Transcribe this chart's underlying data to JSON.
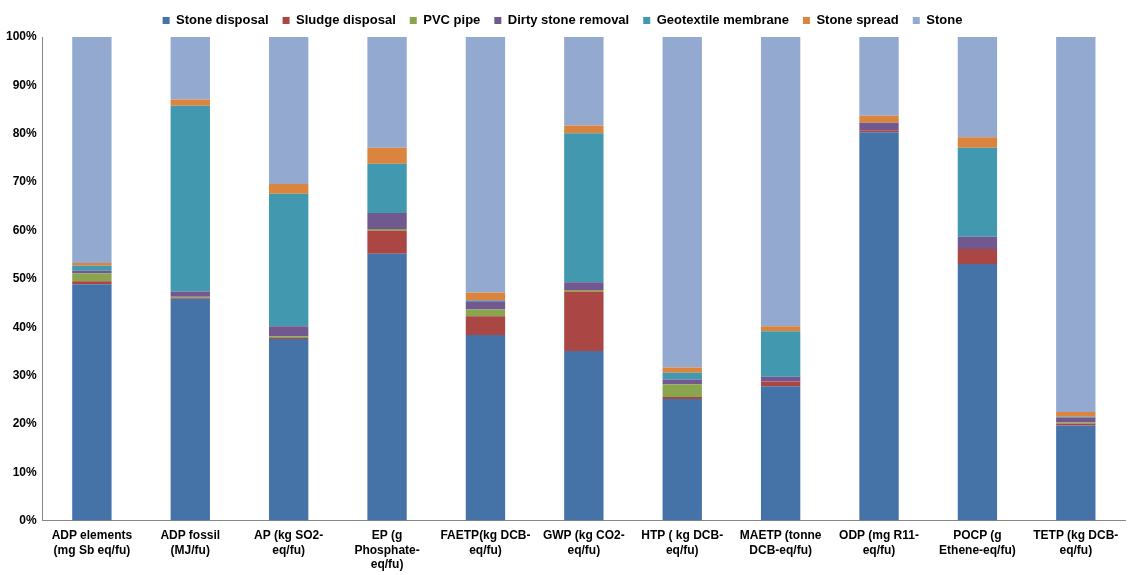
{
  "chart_data": {
    "type": "bar",
    "stacked": true,
    "legend": "top",
    "grid": false,
    "categories": [
      "ADP elements (mg Sb eq/fu)",
      "ADP fossil (MJ/fu)",
      "AP (kg SO2-eq/fu)",
      "EP (g Phosphate-eq/fu)",
      "FAETP(kg DCB-eq/fu)",
      "GWP (kg CO2-eq/fu)",
      "HTP ( kg DCB-eq/fu)",
      "MAETP (tonne DCB-eq/fu)",
      "ODP (mg R11-eq/fu)",
      "POCP (g Ethene-eq/fu)",
      "TETP (kg DCB-eq/fu)"
    ],
    "ylim": [
      0,
      100
    ],
    "yticks": [
      {
        "value": 0,
        "label": "0%"
      },
      {
        "value": 10,
        "label": "10%"
      },
      {
        "value": 20,
        "label": "20%"
      },
      {
        "value": 30,
        "label": "30%"
      },
      {
        "value": 40,
        "label": "40%"
      },
      {
        "value": 50,
        "label": "50%"
      },
      {
        "value": 60,
        "label": "60%"
      },
      {
        "value": 70,
        "label": "70%"
      },
      {
        "value": 80,
        "label": "80%"
      },
      {
        "value": 90,
        "label": "90%"
      },
      {
        "value": 100,
        "label": "100%"
      }
    ],
    "series": [
      {
        "name": "Stone disposal",
        "color": "#4572a7",
        "values": [
          48.9,
          45.9,
          37.6,
          55.2,
          38.4,
          35.1,
          25.2,
          27.8,
          80.3,
          53.1,
          19.7
        ]
      },
      {
        "name": "Sludge disposal",
        "color": "#aa4643",
        "values": [
          0.6,
          0.2,
          0.2,
          4.8,
          3.9,
          12.3,
          0.4,
          1.0,
          0.4,
          3.1,
          0.4
        ]
      },
      {
        "name": "PVC pipe",
        "color": "#89a54e",
        "values": [
          1.6,
          0.2,
          0.3,
          0.3,
          1.4,
          0.3,
          2.6,
          0,
          0,
          0,
          0.2
        ]
      },
      {
        "name": "Dirty stone removal",
        "color": "#71588f",
        "values": [
          0.6,
          1.1,
          2.1,
          3.3,
          1.7,
          1.6,
          1.0,
          1.0,
          1.6,
          2.5,
          1.0
        ]
      },
      {
        "name": "Geotextile membrane",
        "color": "#4198af",
        "values": [
          1.0,
          38.4,
          27.4,
          10.2,
          0.2,
          30.8,
          1.4,
          9.4,
          0,
          18.4,
          0.2
        ]
      },
      {
        "name": "Stone spread",
        "color": "#db843d",
        "values": [
          0.6,
          1.3,
          2.0,
          3.3,
          1.6,
          1.6,
          1.1,
          1.0,
          1.4,
          2.2,
          1.0
        ]
      },
      {
        "name": "Stone",
        "color": "#93a9cf",
        "values": [
          46.7,
          12.9,
          30.4,
          22.9,
          52.8,
          18.3,
          68.3,
          59.8,
          16.3,
          20.7,
          77.5
        ]
      }
    ]
  }
}
